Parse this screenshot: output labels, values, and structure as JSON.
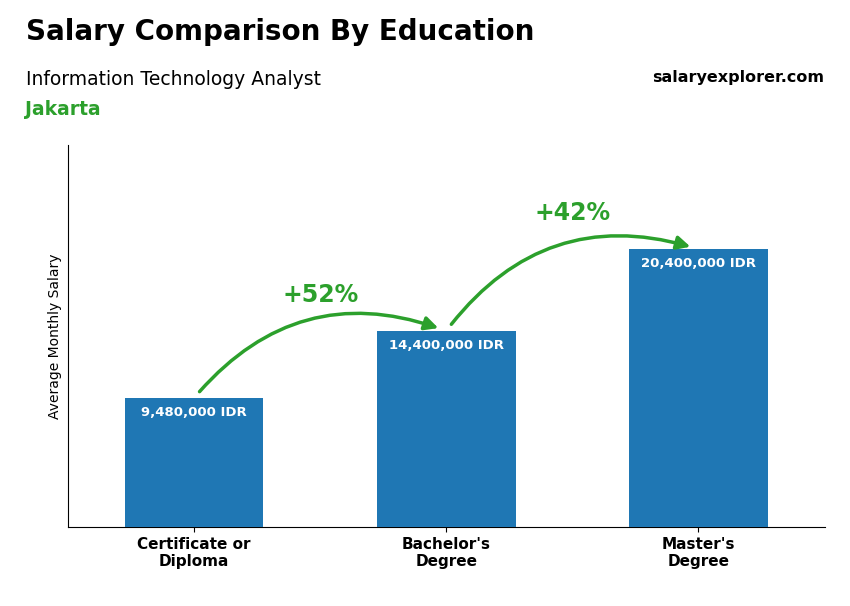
{
  "chart_data": {
    "type": "bar",
    "title": "Salary Comparison By Education",
    "subtitle": "Information Technology Analyst",
    "location": "Jakarta",
    "source": "salaryexplorer.com",
    "ylabel": "Average Monthly Salary",
    "categories": [
      "Certificate or\nDiploma",
      "Bachelor's\nDegree",
      "Master's\nDegree"
    ],
    "values": [
      9480000,
      14400000,
      20400000
    ],
    "value_labels": [
      "9,480,000 IDR",
      "14,400,000 IDR",
      "20,400,000 IDR"
    ],
    "data_labels": true,
    "annotations": [
      "+52%",
      "+42%"
    ],
    "ylim": [
      0,
      28000000
    ],
    "tick_labels": "x",
    "grid": false
  }
}
